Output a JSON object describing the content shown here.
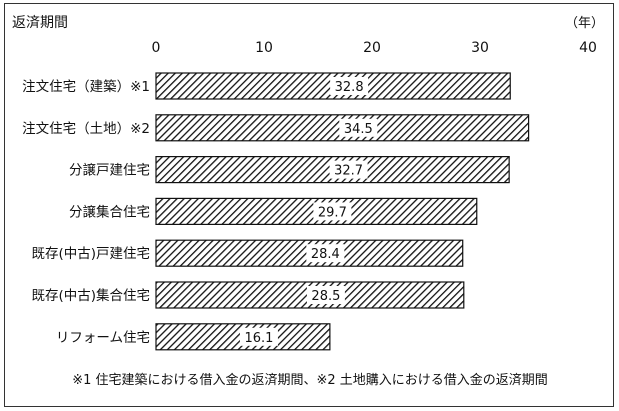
{
  "chart_data": {
    "type": "bar",
    "orientation": "horizontal",
    "title": "返済期間",
    "unit_label": "（年）",
    "xlim": [
      0,
      40
    ],
    "x_ticks": [
      0,
      10,
      20,
      30,
      40
    ],
    "x_tick_labels": [
      "0",
      "10",
      "20",
      "30",
      "40"
    ],
    "grid": false,
    "bar_fill": "diagonal-hatch",
    "categories": [
      "注文住宅（建築）※1",
      "注文住宅（土地）※2",
      "分譲戸建住宅",
      "分譲集合住宅",
      "既存(中古)戸建住宅",
      "既存(中古)集合住宅",
      "リフォーム住宅"
    ],
    "values": [
      32.8,
      34.5,
      32.7,
      29.7,
      28.4,
      28.5,
      16.1
    ],
    "value_labels": [
      "32.8",
      "34.5",
      "32.7",
      "29.7",
      "28.4",
      "28.5",
      "16.1"
    ],
    "footnote": "※1 住宅建築における借入金の返済期間、※2 土地購入における借入金の返済期間"
  }
}
